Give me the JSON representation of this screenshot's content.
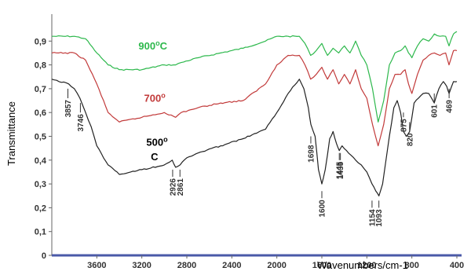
{
  "chart_data": {
    "type": "line",
    "xlabel": "Wavenumbers/cm-1",
    "ylabel": "Transmittance",
    "xlim": [
      4000,
      400
    ],
    "ylim": [
      0,
      1.0
    ],
    "x_ticks": [
      "3600",
      "3200",
      "2800",
      "2400",
      "2000",
      "1600",
      "1200",
      "800",
      "400"
    ],
    "y_ticks": [
      "0",
      "0,1",
      "0,2",
      "0,3",
      "0,4",
      "0,5",
      "0,6",
      "0,7",
      "0,8",
      "0,9"
    ],
    "series": [
      {
        "name": "900°C",
        "color": "#2db84c",
        "x": [
          4000,
          3800,
          3700,
          3600,
          3500,
          3400,
          3200,
          3000,
          2900,
          2850,
          2700,
          2500,
          2300,
          2100,
          2000,
          1900,
          1800,
          1750,
          1700,
          1650,
          1600,
          1550,
          1500,
          1450,
          1400,
          1350,
          1300,
          1250,
          1200,
          1150,
          1100,
          1050,
          1000,
          950,
          900,
          860,
          830,
          800,
          750,
          700,
          650,
          600,
          550,
          500,
          470,
          430,
          400
        ],
        "y": [
          0.92,
          0.92,
          0.91,
          0.85,
          0.8,
          0.78,
          0.78,
          0.8,
          0.8,
          0.81,
          0.83,
          0.85,
          0.87,
          0.9,
          0.92,
          0.92,
          0.92,
          0.89,
          0.84,
          0.86,
          0.89,
          0.84,
          0.87,
          0.85,
          0.88,
          0.85,
          0.9,
          0.84,
          0.8,
          0.7,
          0.56,
          0.65,
          0.8,
          0.85,
          0.86,
          0.88,
          0.85,
          0.83,
          0.88,
          0.91,
          0.9,
          0.93,
          0.92,
          0.92,
          0.88,
          0.93,
          0.94
        ]
      },
      {
        "name": "700°",
        "color": "#c23a3a",
        "x": [
          4000,
          3800,
          3700,
          3600,
          3500,
          3400,
          3200,
          3000,
          2900,
          2850,
          2700,
          2500,
          2300,
          2100,
          2000,
          1900,
          1800,
          1750,
          1700,
          1650,
          1600,
          1550,
          1500,
          1450,
          1400,
          1350,
          1300,
          1250,
          1200,
          1150,
          1100,
          1050,
          1000,
          950,
          900,
          860,
          830,
          800,
          750,
          700,
          650,
          600,
          550,
          500,
          470,
          430,
          400
        ],
        "y": [
          0.85,
          0.85,
          0.82,
          0.72,
          0.6,
          0.56,
          0.58,
          0.6,
          0.58,
          0.6,
          0.62,
          0.64,
          0.65,
          0.72,
          0.8,
          0.84,
          0.84,
          0.8,
          0.74,
          0.76,
          0.79,
          0.74,
          0.78,
          0.72,
          0.76,
          0.72,
          0.78,
          0.7,
          0.66,
          0.55,
          0.46,
          0.55,
          0.7,
          0.76,
          0.76,
          0.78,
          0.72,
          0.68,
          0.76,
          0.82,
          0.84,
          0.85,
          0.84,
          0.85,
          0.8,
          0.86,
          0.86
        ]
      },
      {
        "name": "500°C",
        "color": "#222222",
        "x": [
          4000,
          3850,
          3800,
          3750,
          3700,
          3650,
          3600,
          3500,
          3400,
          3300,
          3200,
          3000,
          2930,
          2900,
          2860,
          2800,
          2700,
          2500,
          2300,
          2100,
          2000,
          1900,
          1800,
          1760,
          1720,
          1698,
          1660,
          1630,
          1600,
          1570,
          1530,
          1500,
          1470,
          1445,
          1420,
          1380,
          1300,
          1250,
          1200,
          1154,
          1120,
          1093,
          1060,
          1000,
          960,
          930,
          900,
          875,
          850,
          820,
          780,
          700,
          650,
          601,
          560,
          520,
          490,
          469,
          430,
          400
        ],
        "y": [
          0.74,
          0.72,
          0.7,
          0.66,
          0.6,
          0.54,
          0.46,
          0.38,
          0.34,
          0.35,
          0.36,
          0.38,
          0.4,
          0.37,
          0.38,
          0.41,
          0.43,
          0.46,
          0.49,
          0.53,
          0.6,
          0.68,
          0.74,
          0.7,
          0.62,
          0.55,
          0.5,
          0.36,
          0.3,
          0.36,
          0.49,
          0.52,
          0.47,
          0.44,
          0.46,
          0.44,
          0.4,
          0.38,
          0.35,
          0.3,
          0.27,
          0.25,
          0.3,
          0.5,
          0.62,
          0.65,
          0.6,
          0.52,
          0.5,
          0.52,
          0.64,
          0.68,
          0.68,
          0.64,
          0.7,
          0.73,
          0.71,
          0.68,
          0.73,
          0.73
        ]
      }
    ],
    "series_labels": [
      {
        "series": 0,
        "parts": [
          "900",
          "o",
          "C"
        ],
        "x": 3230,
        "y": 0.865
      },
      {
        "series": 1,
        "parts": [
          "700",
          "o",
          ""
        ],
        "x": 3180,
        "y": 0.645
      },
      {
        "series": 2,
        "parts": [
          "500",
          "o",
          ""
        ],
        "x": 3160,
        "y": 0.46
      },
      {
        "series": 2,
        "parts": [
          "C",
          "",
          ""
        ],
        "x": 3120,
        "y": 0.4
      }
    ],
    "annotations": [
      {
        "label": "3857",
        "x": 3857,
        "line_top": 0.7,
        "line_bottom": 0.66
      },
      {
        "label": "3746",
        "x": 3746,
        "line_top": 0.64,
        "line_bottom": 0.6
      },
      {
        "label": "2926",
        "x": 2926,
        "line_top": 0.36,
        "line_bottom": 0.33
      },
      {
        "label": "2861",
        "x": 2861,
        "line_top": 0.36,
        "line_bottom": 0.33
      },
      {
        "label": "1698",
        "x": 1698,
        "line_top": 0.5,
        "line_bottom": 0.47
      },
      {
        "label": "1600",
        "x": 1600,
        "line_top": 0.27,
        "line_bottom": 0.24
      },
      {
        "label": "1435",
        "x": 1435,
        "line_top": 0.43,
        "line_bottom": 0.4
      },
      {
        "label": "1445",
        "x": 1445,
        "line_top": 0.43,
        "line_bottom": 0.4
      },
      {
        "label": "1154",
        "x": 1154,
        "line_top": 0.23,
        "line_bottom": 0.2
      },
      {
        "label": "1093",
        "x": 1093,
        "line_top": 0.23,
        "line_bottom": 0.2
      },
      {
        "label": "875",
        "x": 875,
        "line_top": 0.6,
        "line_bottom": 0.58
      },
      {
        "label": "820",
        "x": 820,
        "line_top": 0.56,
        "line_bottom": 0.52
      },
      {
        "label": "601",
        "x": 601,
        "line_top": 0.68,
        "line_bottom": 0.64
      },
      {
        "label": "469",
        "x": 469,
        "line_top": 0.7,
        "line_bottom": 0.66
      }
    ],
    "grid": false,
    "legend": "none"
  }
}
